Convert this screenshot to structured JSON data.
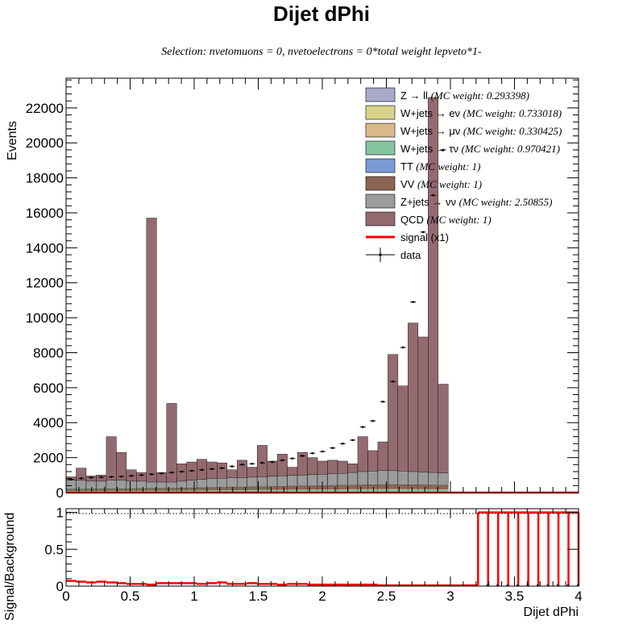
{
  "title": "Dijet dPhi",
  "subtitle": "Selection: nvetomuons = 0, nvetoelectrons = 0*total weight lepveto*1-",
  "chart_data": {
    "type": "bar",
    "stacked": true,
    "title": "Dijet dPhi",
    "xlabel": "Dijet dPhi",
    "ylabel": "Events",
    "xlim": [
      0,
      4
    ],
    "ylim": [
      0,
      23700
    ],
    "bin_width": 0.0785,
    "x_ticks": [
      "0",
      "0.5",
      "1",
      "1.5",
      "2",
      "2.5",
      "3",
      "3.5",
      "4"
    ],
    "y_ticks": [
      "0",
      "2000",
      "4000",
      "6000",
      "8000",
      "10000",
      "12000",
      "14000",
      "16000",
      "18000",
      "20000",
      "22000"
    ],
    "grid": false,
    "legend_position": "top-right",
    "legend": [
      {
        "name": "Z → ll",
        "weight": "(MC weight: 0.293398)",
        "kind": "fill",
        "color": "#a9a9c9"
      },
      {
        "name": "W+jets → eν",
        "weight": "(MC weight: 0.733018)",
        "kind": "fill",
        "color": "#d7d38a"
      },
      {
        "name": "W+jets → μν",
        "weight": "(MC weight: 0.330425)",
        "kind": "fill",
        "color": "#dcb98a"
      },
      {
        "name": "W+jets → τν",
        "weight": "(MC weight: 0.970421)",
        "kind": "fill",
        "color": "#87c4a0"
      },
      {
        "name": "TT",
        "weight": "(MC weight: 1)",
        "kind": "fill",
        "color": "#7c9bd6"
      },
      {
        "name": "VV",
        "weight": "(MC weight: 1)",
        "kind": "fill",
        "color": "#8a6554"
      },
      {
        "name": "Z+jets → νν",
        "weight": "(MC weight: 2.50855)",
        "kind": "fill",
        "color": "#9b9b9b"
      },
      {
        "name": "QCD",
        "weight": "(MC weight: 1)",
        "kind": "fill",
        "color": "#936a70"
      },
      {
        "name": "signal (x1)",
        "weight": "",
        "kind": "line",
        "color": "#ff0000"
      },
      {
        "name": "data",
        "weight": "",
        "kind": "marker",
        "color": "#000000"
      }
    ],
    "total_background": [
      900,
      1400,
      950,
      1000,
      3200,
      2300,
      1300,
      1150,
      15700,
      1150,
      5100,
      1650,
      1750,
      1900,
      1750,
      1700,
      1300,
      1850,
      1450,
      2700,
      1800,
      2200,
      1450,
      2300,
      2000,
      1800,
      1850,
      1800,
      1650,
      3200,
      2400,
      2900,
      7900,
      6100,
      9700,
      8900,
      22600,
      6200,
      0,
      0,
      0,
      0,
      0,
      0,
      0,
      0,
      0,
      0,
      0,
      0,
      0
    ],
    "znunu_cumulative": [
      700,
      700,
      650,
      650,
      700,
      700,
      650,
      650,
      600,
      600,
      600,
      650,
      700,
      750,
      800,
      820,
      850,
      850,
      880,
      900,
      930,
      950,
      980,
      1000,
      1030,
      1050,
      1080,
      1100,
      1150,
      1200,
      1230,
      1260,
      1250,
      1230,
      1200,
      1170,
      1150,
      1120,
      0,
      0,
      0,
      0,
      0,
      0,
      0,
      0,
      0,
      0,
      0,
      0,
      0
    ],
    "small_bkg_cumulative": [
      200,
      200,
      210,
      210,
      220,
      220,
      230,
      230,
      240,
      240,
      250,
      260,
      270,
      280,
      290,
      300,
      310,
      320,
      330,
      340,
      350,
      360,
      370,
      380,
      390,
      400,
      410,
      420,
      430,
      440,
      450,
      460,
      460,
      450,
      450,
      440,
      430,
      420,
      0,
      0,
      0,
      0,
      0,
      0,
      0,
      0,
      0,
      0,
      0,
      0,
      0
    ],
    "data": [
      760,
      820,
      860,
      880,
      900,
      920,
      960,
      1000,
      1050,
      1100,
      1150,
      1200,
      1250,
      1300,
      1350,
      1400,
      1500,
      1600,
      1650,
      1700,
      1750,
      1850,
      1950,
      2100,
      2250,
      2350,
      2550,
      2800,
      3000,
      3750,
      4100,
      5200,
      6350,
      8300,
      10900,
      14900,
      17000,
      19600,
      0,
      0,
      0,
      0,
      0,
      0,
      0,
      0,
      0,
      0,
      0,
      0,
      0
    ],
    "signal": [
      0,
      0,
      0,
      0,
      0,
      0,
      0,
      0,
      0,
      0,
      0,
      0,
      0,
      0,
      0,
      0,
      0,
      0,
      0,
      0,
      0,
      0,
      0,
      0,
      0,
      0,
      0,
      0,
      0,
      0,
      0,
      0,
      0,
      0,
      0,
      0,
      0,
      0,
      0,
      0,
      0,
      0,
      0,
      0,
      0,
      0,
      0,
      0,
      0,
      0,
      0
    ],
    "ratio": {
      "ylabel": "Signal/Background",
      "ylim": [
        0,
        1.05
      ],
      "y_ticks": [
        "0",
        "0.5",
        "1"
      ],
      "values": [
        0.07,
        0.06,
        0.05,
        0.06,
        0.05,
        0.04,
        0.03,
        0.03,
        0.02,
        0.04,
        0.04,
        0.04,
        0.04,
        0.03,
        0.04,
        0.05,
        0.03,
        0.03,
        0.04,
        0.03,
        0.03,
        0.02,
        0.03,
        0.03,
        0.02,
        0.02,
        0.02,
        0.02,
        0.02,
        0.02,
        0.02,
        0.01,
        0.01,
        0.01,
        0.01,
        0.01,
        0.01,
        0.01,
        0.01,
        0.01,
        0.01,
        1,
        1,
        1,
        1,
        1,
        1,
        1,
        1,
        1,
        1
      ]
    }
  }
}
